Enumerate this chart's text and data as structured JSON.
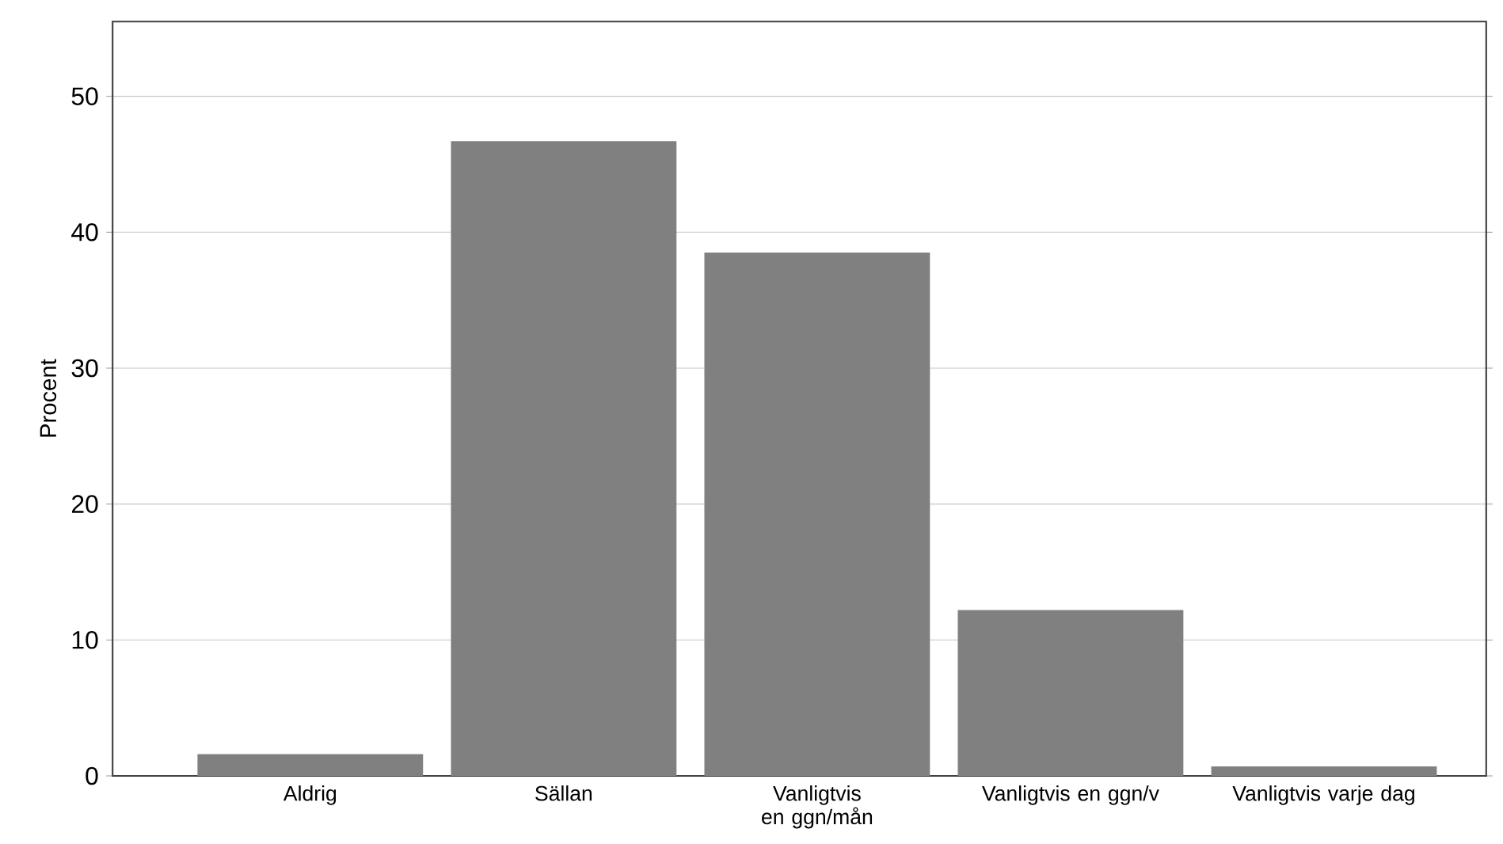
{
  "chart_data": {
    "type": "bar",
    "ylabel": "Procent",
    "categories": [
      "Aldrig",
      "Sällan",
      "Vanligtvis en ggn/mån",
      "Vanligtvis en ggn/v",
      "Vanligtvis varje dag"
    ],
    "values": [
      1.6,
      46.7,
      38.5,
      12.2,
      0.7
    ],
    "color": "#808080",
    "ylim": [
      0,
      55.5
    ],
    "yticks": [
      0,
      10,
      20,
      30,
      40,
      50
    ],
    "grid": "y"
  }
}
